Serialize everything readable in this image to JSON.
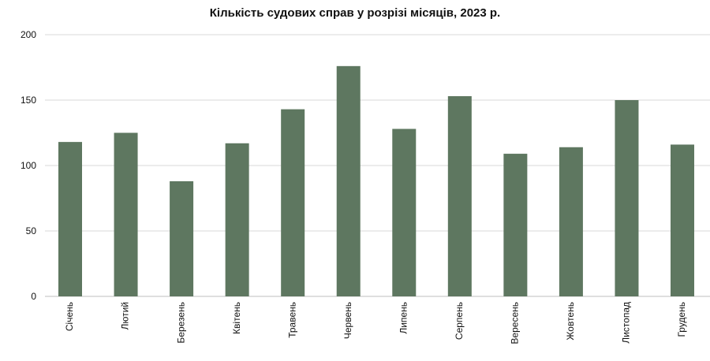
{
  "chart_data": {
    "type": "bar",
    "title": "Кількість судових справ у розрізі місяців, 2023 р.",
    "xlabel": "",
    "ylabel": "",
    "categories": [
      "Січень",
      "Лютий",
      "Березень",
      "Квітень",
      "Травень",
      "Червень",
      "Липень",
      "Серпень",
      "Вересень",
      "Жовтень",
      "Листопад",
      "Грудень"
    ],
    "values": [
      118,
      125,
      88,
      117,
      143,
      176,
      128,
      153,
      109,
      114,
      150,
      116
    ],
    "ylim": [
      0,
      200
    ],
    "yticks": [
      0,
      50,
      100,
      150,
      200
    ],
    "grid": true,
    "legend": "none",
    "bar_color": "#5e7760",
    "grid_color": "#d9d9d9",
    "axis_color": "#bfbfbf"
  }
}
